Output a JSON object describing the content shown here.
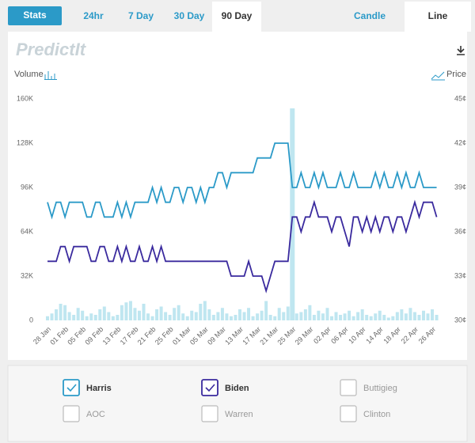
{
  "stats_button": "Stats",
  "tabs": [
    "24hr",
    "7 Day",
    "30 Day",
    "90 Day"
  ],
  "selected_tab_index": 3,
  "view_tabs": [
    "Candle",
    "Line"
  ],
  "selected_view_index": 1,
  "logo": "PredictIt",
  "chart_data": {
    "type": "line",
    "ylabel": "Volume",
    "y2label": "Price",
    "categories": [
      "28 Jan",
      null,
      null,
      null,
      "01 Feb",
      null,
      null,
      null,
      "05 Feb",
      null,
      null,
      null,
      "09 Feb",
      null,
      null,
      null,
      "13 Feb",
      null,
      null,
      null,
      "17 Feb",
      null,
      null,
      null,
      "21 Feb",
      null,
      null,
      null,
      "25 Feb",
      null,
      null,
      null,
      "01 Mar",
      null,
      null,
      null,
      "05 Mar",
      null,
      null,
      null,
      "09 Mar",
      null,
      null,
      null,
      "13 Mar",
      null,
      null,
      null,
      "17 Mar",
      null,
      null,
      null,
      "21 Mar",
      null,
      null,
      null,
      "25 Mar",
      null,
      null,
      null,
      "29 Mar",
      null,
      null,
      null,
      "02 Apr",
      null,
      null,
      null,
      "06 Apr",
      null,
      null,
      null,
      "10 Apr",
      null,
      null,
      null,
      "14 Apr",
      null,
      null,
      null,
      "18 Apr",
      null,
      null,
      null,
      "22 Apr",
      null,
      null,
      null,
      "26 Apr",
      null
    ],
    "volume": {
      "color": "#bfe6f0",
      "values": [
        3000,
        5000,
        8000,
        12000,
        11000,
        6000,
        4000,
        9000,
        7000,
        3000,
        5000,
        4000,
        8000,
        10000,
        6000,
        3000,
        4000,
        11000,
        13000,
        14000,
        9000,
        7000,
        12000,
        5000,
        3000,
        8000,
        10000,
        6000,
        4000,
        9000,
        11000,
        5000,
        3000,
        7000,
        6000,
        12000,
        14000,
        8000,
        4000,
        6000,
        9000,
        5000,
        3000,
        4000,
        8000,
        6000,
        9000,
        3000,
        5000,
        7000,
        14000,
        4000,
        3000,
        9000,
        6000,
        10000,
        15000,
        5000,
        6000,
        8000,
        11000,
        4000,
        7000,
        5000,
        9000,
        3000,
        6000,
        4000,
        5000,
        7000,
        3000,
        6000,
        8000,
        4000,
        3000,
        5000,
        7000,
        4000,
        2000,
        3000,
        6000,
        8000,
        5000,
        9000,
        6000,
        4000,
        7000,
        5000,
        8000,
        4000
      ]
    },
    "series": [
      {
        "name": "Harris",
        "color": "#2b9ac8",
        "axis": "y2",
        "values": [
          38,
          37,
          38,
          38,
          37,
          38,
          38,
          38,
          38,
          37,
          37,
          38,
          38,
          37,
          37,
          37,
          38,
          37,
          38,
          37,
          38,
          38,
          38,
          38,
          39,
          38,
          39,
          38,
          38,
          39,
          39,
          38,
          39,
          39,
          38,
          39,
          38,
          39,
          39,
          40,
          40,
          39,
          40,
          40,
          40,
          40,
          40,
          40,
          41,
          41,
          41,
          41,
          42,
          42,
          42,
          42,
          39,
          39,
          40,
          39,
          39,
          40,
          39,
          40,
          39,
          39,
          39,
          40,
          39,
          39,
          40,
          39,
          39,
          39,
          39,
          40,
          39,
          40,
          39,
          39,
          40,
          39,
          40,
          39,
          39,
          40,
          39,
          39,
          39,
          39
        ]
      },
      {
        "name": "Biden",
        "color": "#3a2a9e",
        "axis": "y2",
        "values": [
          34,
          34,
          34,
          35,
          35,
          34,
          35,
          35,
          35,
          35,
          34,
          34,
          35,
          35,
          34,
          34,
          35,
          34,
          35,
          34,
          34,
          35,
          34,
          34,
          35,
          34,
          35,
          34,
          34,
          34,
          34,
          34,
          34,
          34,
          34,
          34,
          34,
          34,
          34,
          34,
          34,
          34,
          33,
          33,
          33,
          33,
          34,
          33,
          33,
          33,
          32,
          33,
          34,
          34,
          34,
          34,
          37,
          37,
          36,
          37,
          37,
          38,
          37,
          37,
          37,
          36,
          37,
          37,
          36,
          35,
          37,
          37,
          36,
          37,
          36,
          37,
          36,
          37,
          37,
          36,
          37,
          37,
          36,
          37,
          38,
          37,
          38,
          38,
          38,
          37
        ]
      }
    ],
    "hidden_series": [
      "Buttigieg",
      "AOC",
      "Warren",
      "Clinton"
    ],
    "ylim": [
      0,
      160000
    ],
    "yticks": [
      0,
      {
        "value": 32000,
        "label": "32K"
      },
      {
        "value": 64000,
        "label": "64K"
      },
      {
        "value": 96000,
        "label": "96K"
      },
      {
        "value": 128000,
        "label": "128K"
      },
      {
        "value": 160000,
        "label": "160K"
      }
    ],
    "y2lim": [
      30,
      45
    ],
    "y2ticks": [
      {
        "value": 30,
        "label": "30¢"
      },
      {
        "value": 33,
        "label": "33¢"
      },
      {
        "value": 36,
        "label": "36¢"
      },
      {
        "value": 39,
        "label": "39¢"
      },
      {
        "value": 42,
        "label": "42¢"
      },
      {
        "value": 45,
        "label": "45¢"
      }
    ]
  }
}
